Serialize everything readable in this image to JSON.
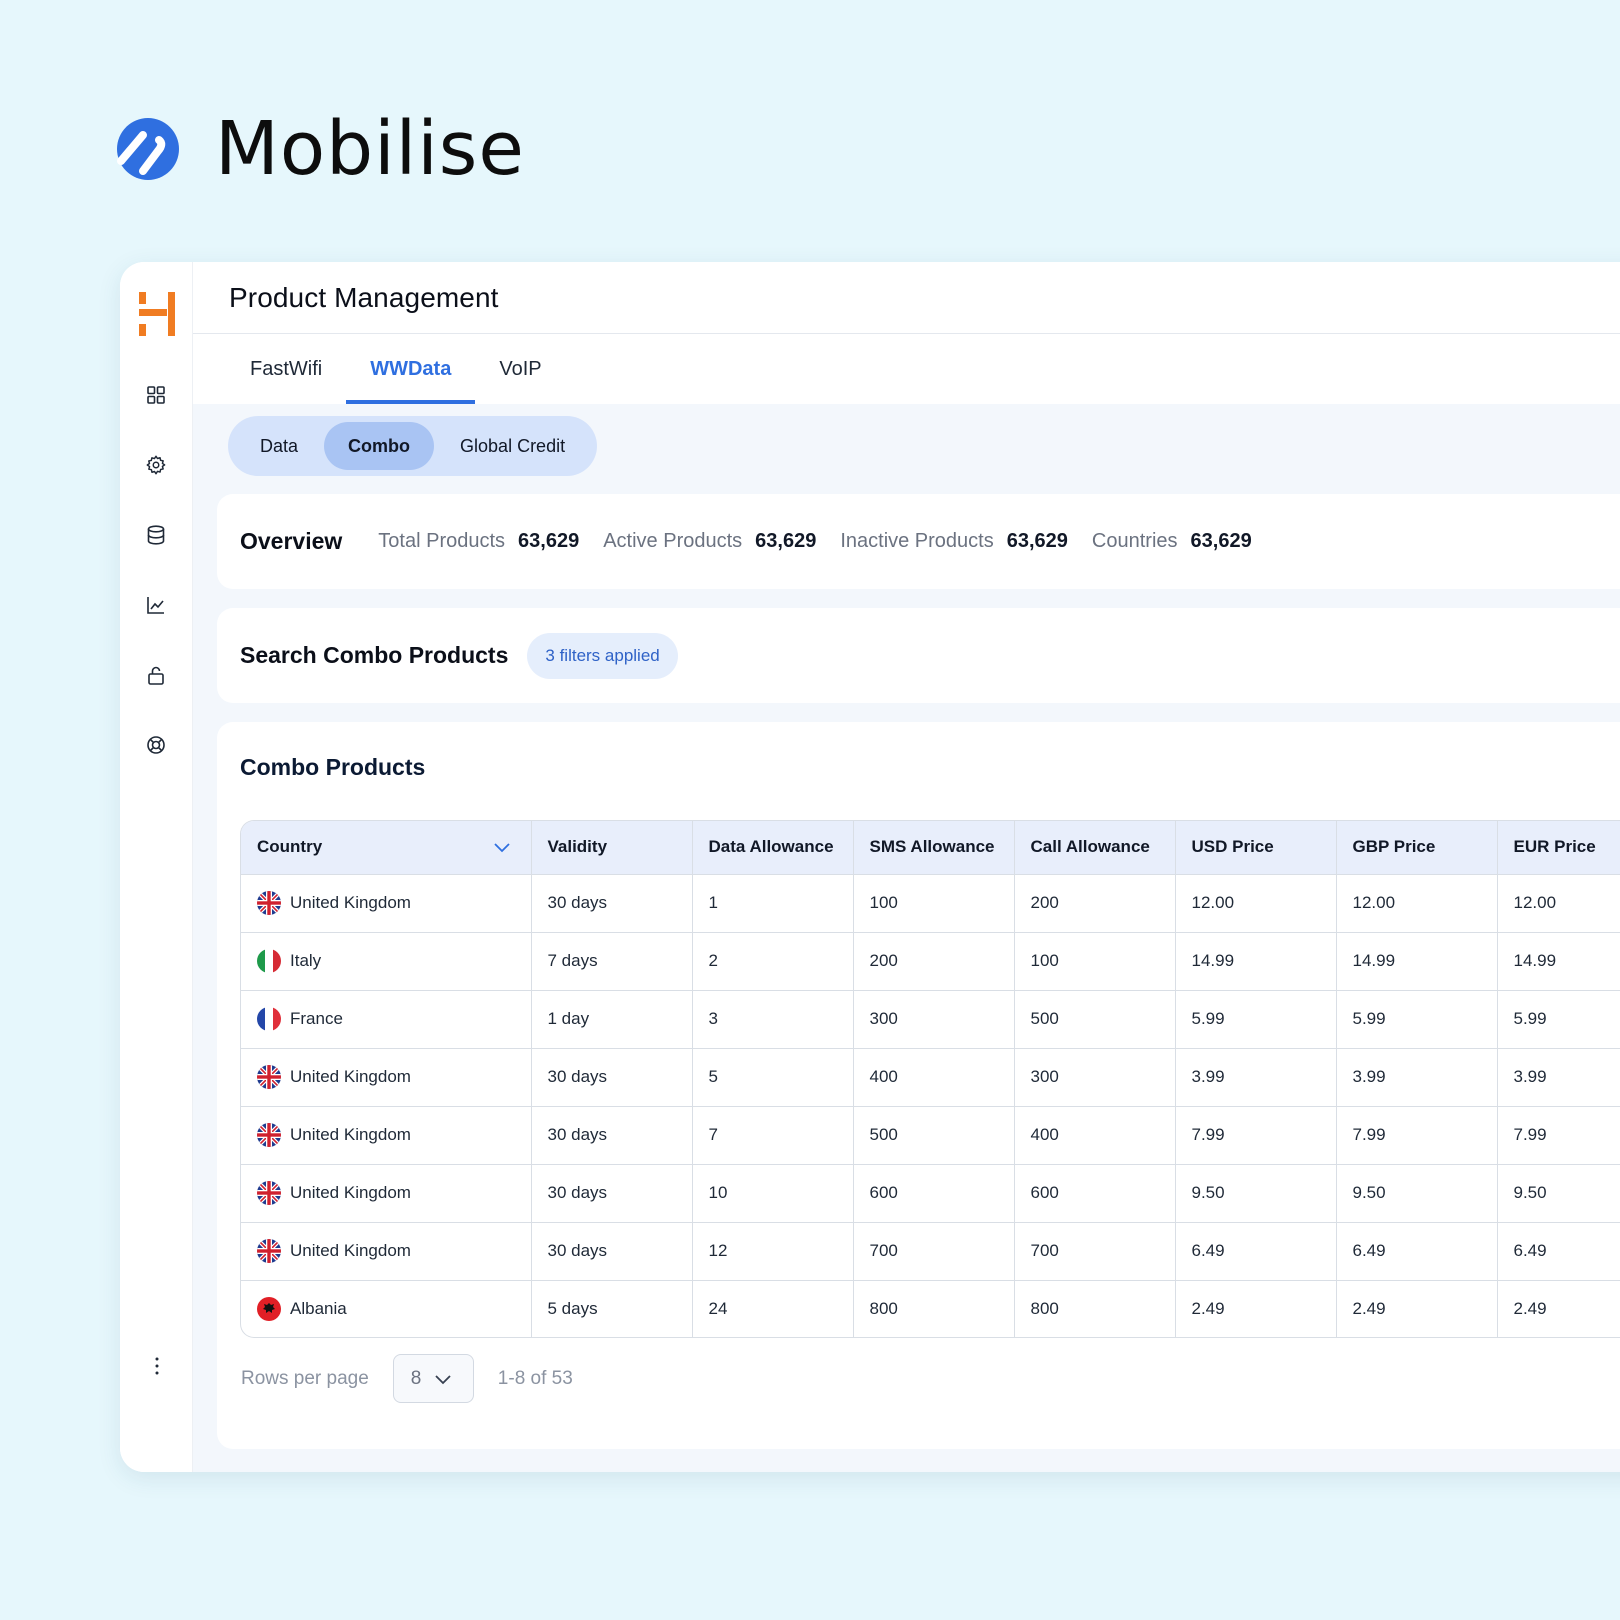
{
  "brand": {
    "name": "Mobilise"
  },
  "header": {
    "title": "Product Management"
  },
  "tabs": [
    {
      "label": "FastWifi",
      "active": false
    },
    {
      "label": "WWData",
      "active": true
    },
    {
      "label": "VoIP",
      "active": false
    }
  ],
  "segments": [
    {
      "label": "Data",
      "active": false
    },
    {
      "label": "Combo",
      "active": true
    },
    {
      "label": "Global Credit",
      "active": false
    }
  ],
  "sidebar": {
    "icons": [
      "grid-icon",
      "gear-icon",
      "database-icon",
      "chart-icon",
      "lock-icon",
      "lifebuoy-icon"
    ],
    "more_icon": "more-vertical-icon"
  },
  "overview": {
    "title": "Overview",
    "stats": [
      {
        "label": "Total Products",
        "value": "63,629"
      },
      {
        "label": "Active Products",
        "value": "63,629"
      },
      {
        "label": "Inactive Products",
        "value": "63,629"
      },
      {
        "label": "Countries",
        "value": "63,629"
      }
    ]
  },
  "search": {
    "title": "Search Combo Products",
    "filter_chip": "3 filters applied"
  },
  "products": {
    "title": "Combo Products",
    "columns": [
      "Country",
      "Validity",
      "Data Allowance",
      "SMS Allowance",
      "Call Allowance",
      "USD Price",
      "GBP Price",
      "EUR Price"
    ],
    "rows": [
      {
        "flag": "uk",
        "country": "United Kingdom",
        "validity": "30 days",
        "data": "1",
        "sms": "100",
        "call": "200",
        "usd": "12.00",
        "gbp": "12.00",
        "eur": "12.00"
      },
      {
        "flag": "it",
        "country": "Italy",
        "validity": "7 days",
        "data": "2",
        "sms": "200",
        "call": "100",
        "usd": "14.99",
        "gbp": "14.99",
        "eur": "14.99"
      },
      {
        "flag": "fr",
        "country": "France",
        "validity": "1 day",
        "data": "3",
        "sms": "300",
        "call": "500",
        "usd": "5.99",
        "gbp": "5.99",
        "eur": "5.99"
      },
      {
        "flag": "uk",
        "country": "United Kingdom",
        "validity": "30 days",
        "data": "5",
        "sms": "400",
        "call": "300",
        "usd": "3.99",
        "gbp": "3.99",
        "eur": "3.99"
      },
      {
        "flag": "uk",
        "country": "United Kingdom",
        "validity": "30 days",
        "data": "7",
        "sms": "500",
        "call": "400",
        "usd": "7.99",
        "gbp": "7.99",
        "eur": "7.99"
      },
      {
        "flag": "uk",
        "country": "United Kingdom",
        "validity": "30 days",
        "data": "10",
        "sms": "600",
        "call": "600",
        "usd": "9.50",
        "gbp": "9.50",
        "eur": "9.50"
      },
      {
        "flag": "uk",
        "country": "United Kingdom",
        "validity": "30 days",
        "data": "12",
        "sms": "700",
        "call": "700",
        "usd": "6.49",
        "gbp": "6.49",
        "eur": "6.49"
      },
      {
        "flag": "al",
        "country": "Albania",
        "validity": "5 days",
        "data": "24",
        "sms": "800",
        "call": "800",
        "usd": "2.49",
        "gbp": "2.49",
        "eur": "2.49"
      }
    ]
  },
  "pagination": {
    "rows_label": "Rows per page",
    "rows_value": "8",
    "range": "1-8 of 53"
  },
  "colors": {
    "accent": "#2f6fe0",
    "brand_orange": "#f07c22",
    "background": "#e6f7fc"
  }
}
